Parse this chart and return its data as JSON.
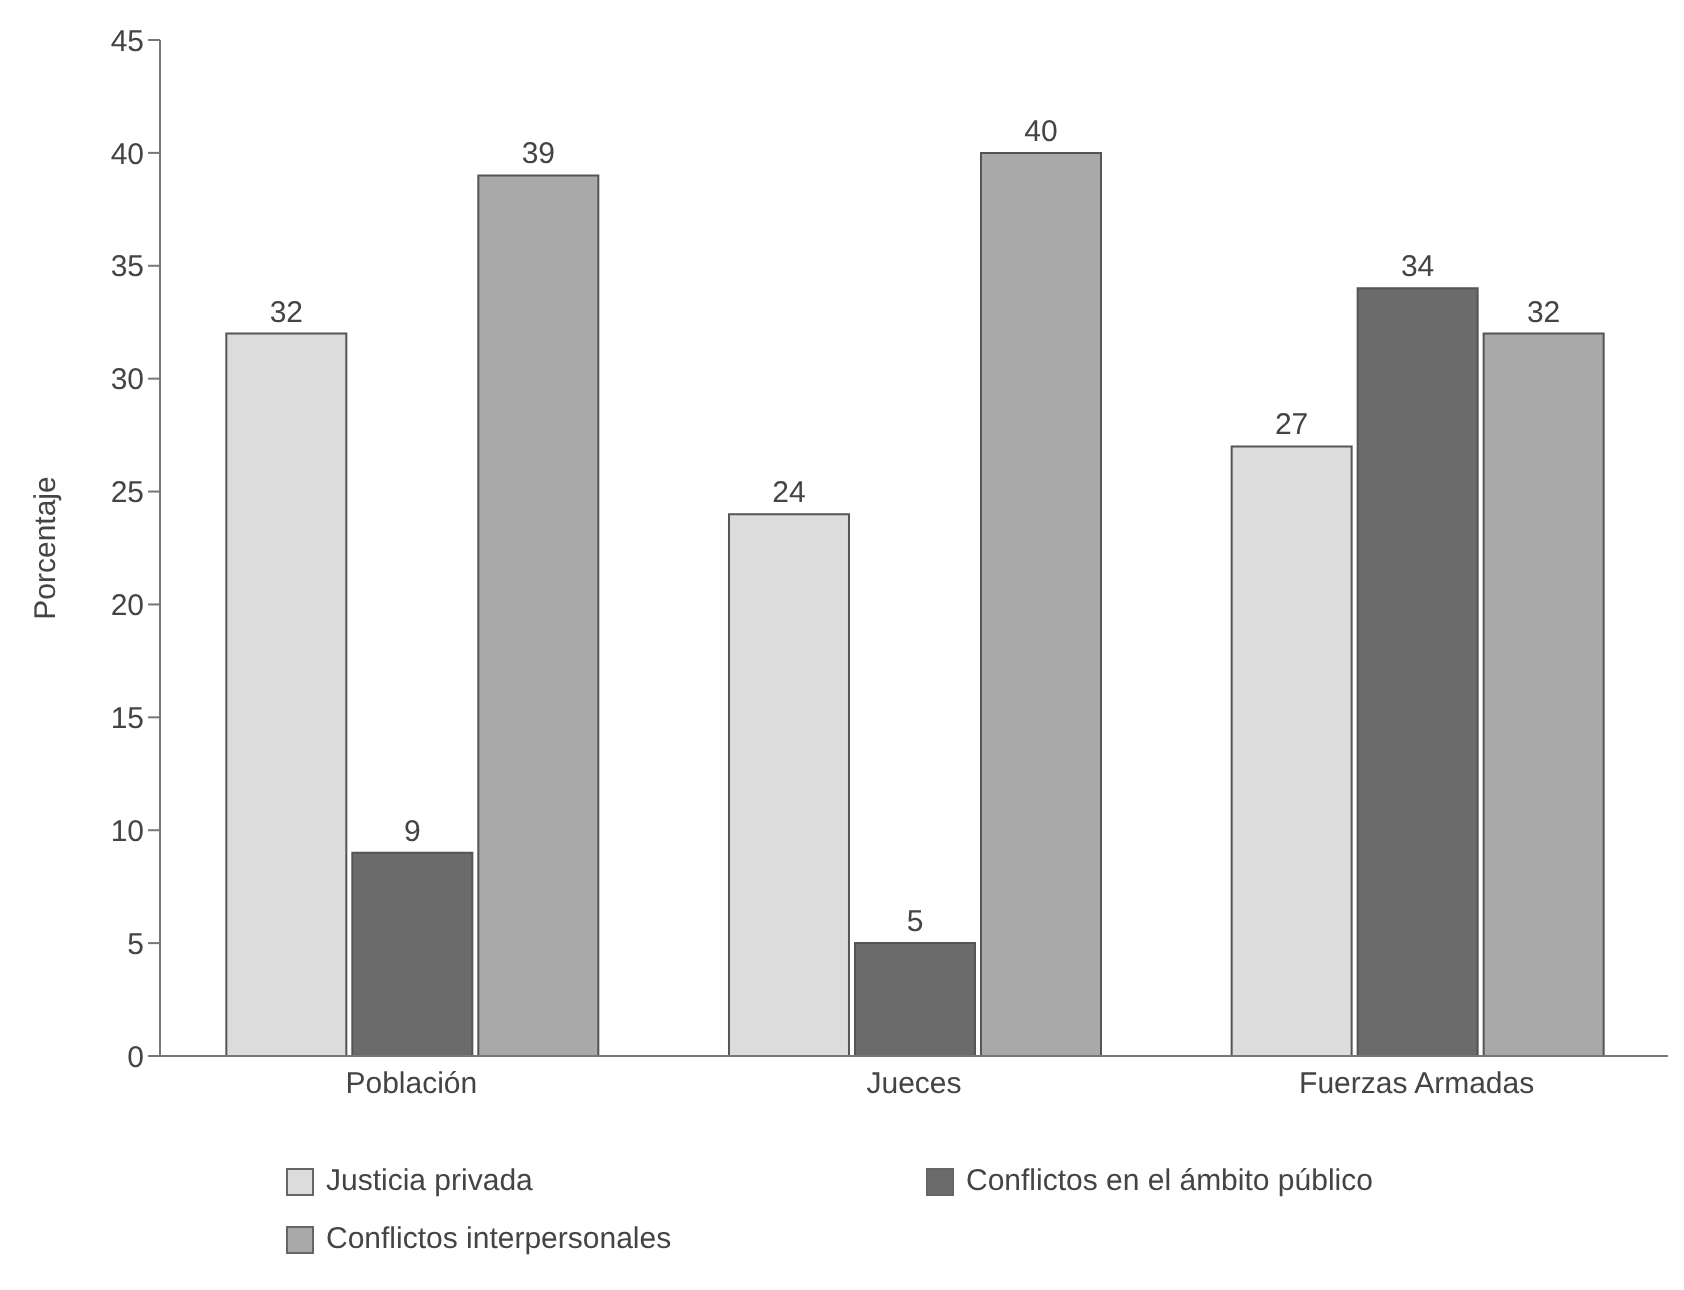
{
  "chart_data": {
    "type": "bar",
    "ylabel": "Porcentaje",
    "categories": [
      "Población",
      "Jueces",
      "Fuerzas Armadas"
    ],
    "series": [
      {
        "name": "Justicia privada",
        "color": "#dcdcdc",
        "values": [
          32,
          24,
          27
        ]
      },
      {
        "name": "Conflictos en el ámbito público",
        "color": "#6b6b6b",
        "values": [
          9,
          5,
          34
        ]
      },
      {
        "name": "Conflictos interpersonales",
        "color": "#a9a9a9",
        "values": [
          39,
          40,
          32
        ]
      }
    ],
    "ylim": [
      0,
      45
    ],
    "yticks": [
      0,
      5,
      10,
      15,
      20,
      25,
      30,
      35,
      40,
      45
    ],
    "data_labels": true,
    "grid": false,
    "legend": "bottom"
  }
}
